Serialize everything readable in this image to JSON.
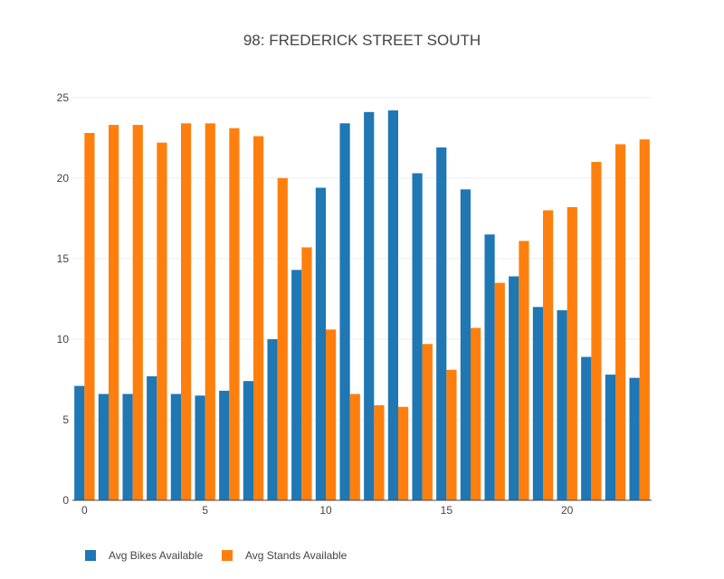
{
  "chart_data": {
    "type": "bar",
    "title": "98: FREDERICK STREET SOUTH",
    "xlabel": "",
    "ylabel": "",
    "x": [
      0,
      1,
      2,
      3,
      4,
      5,
      6,
      7,
      8,
      9,
      10,
      11,
      12,
      13,
      14,
      15,
      16,
      17,
      18,
      19,
      20,
      21,
      22,
      23
    ],
    "x_ticks": [
      0,
      5,
      10,
      15,
      20
    ],
    "y_ticks": [
      0,
      5,
      10,
      15,
      20,
      25
    ],
    "ylim": [
      0,
      26
    ],
    "grid": true,
    "legend_position": "bottom-left",
    "series": [
      {
        "name": "Avg Bikes Available",
        "color": "#1f77b4",
        "values": [
          7.1,
          6.6,
          6.6,
          7.7,
          6.6,
          6.5,
          6.8,
          7.4,
          10.0,
          14.3,
          19.4,
          23.4,
          24.1,
          24.2,
          20.3,
          21.9,
          19.3,
          16.5,
          13.9,
          12.0,
          11.8,
          8.9,
          7.8,
          7.6
        ]
      },
      {
        "name": "Avg Stands Available",
        "color": "#ff7f0e",
        "values": [
          22.8,
          23.3,
          23.3,
          22.2,
          23.4,
          23.4,
          23.1,
          22.6,
          20.0,
          15.7,
          10.6,
          6.6,
          5.9,
          5.8,
          9.7,
          8.1,
          10.7,
          13.5,
          16.1,
          18.0,
          18.2,
          21.0,
          22.1,
          22.4
        ]
      }
    ]
  }
}
